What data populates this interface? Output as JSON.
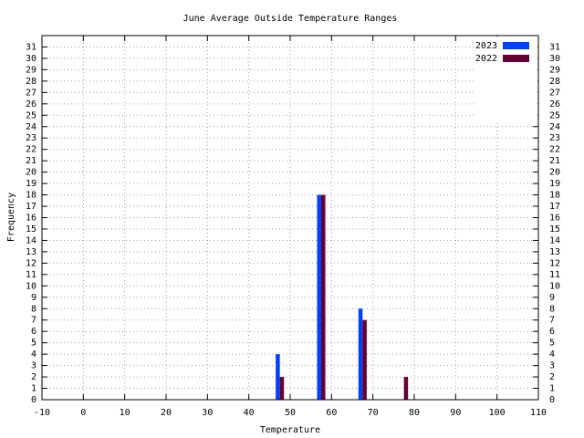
{
  "chart_data": {
    "type": "bar",
    "title": "June Average Outside Temperature Ranges",
    "x_label": "Temperature",
    "y_label": "Frequency",
    "series": [
      {
        "name": "2023",
        "color": "#0040ff",
        "x": [
          47,
          57,
          67
        ],
        "values": [
          4,
          18,
          8
        ]
      },
      {
        "name": "2022",
        "color": "#660033",
        "x": [
          48,
          58,
          68,
          78
        ],
        "values": [
          2,
          18,
          7,
          2
        ]
      }
    ],
    "xlim": [
      -10,
      110
    ],
    "xticks": [
      -10,
      0,
      10,
      20,
      30,
      40,
      50,
      60,
      70,
      80,
      90,
      100,
      110
    ],
    "ylim": [
      0,
      32
    ],
    "yticks": [
      0,
      1,
      2,
      3,
      4,
      5,
      6,
      7,
      8,
      9,
      10,
      11,
      12,
      13,
      14,
      15,
      16,
      17,
      18,
      19,
      20,
      21,
      22,
      23,
      24,
      25,
      26,
      27,
      28,
      29,
      30,
      31
    ],
    "grid": true,
    "legend": "top-right"
  }
}
